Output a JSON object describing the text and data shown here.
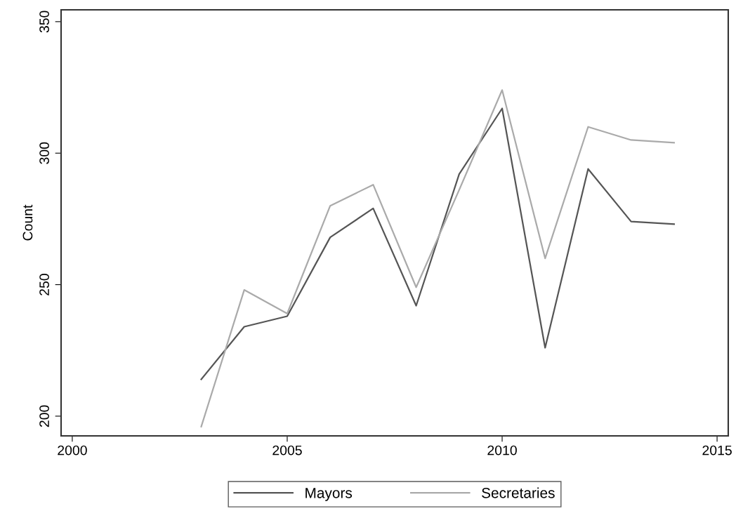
{
  "chart_data": {
    "type": "line",
    "ylabel": "Count",
    "x": [
      2003,
      2004,
      2005,
      2006,
      2007,
      2008,
      2009,
      2010,
      2011,
      2012,
      2013,
      2014
    ],
    "series": [
      {
        "name": "Mayors",
        "color": "#555555",
        "values": [
          214,
          234,
          238,
          268,
          279,
          242,
          292,
          317,
          226,
          294,
          274,
          273
        ]
      },
      {
        "name": "Secretaries",
        "color": "#aaaaaa",
        "values": [
          196,
          248,
          239,
          280,
          288,
          249,
          286,
          324,
          260,
          310,
          305,
          304
        ]
      }
    ],
    "xlim": [
      1999.74,
      2015.26
    ],
    "ylim": [
      192.5,
      354.5
    ],
    "xticks": [
      2000,
      2005,
      2010,
      2015
    ],
    "yticks": [
      200,
      250,
      300,
      350
    ],
    "grid": false,
    "legend": "bottom",
    "marker": "none",
    "line_style": "solid"
  }
}
